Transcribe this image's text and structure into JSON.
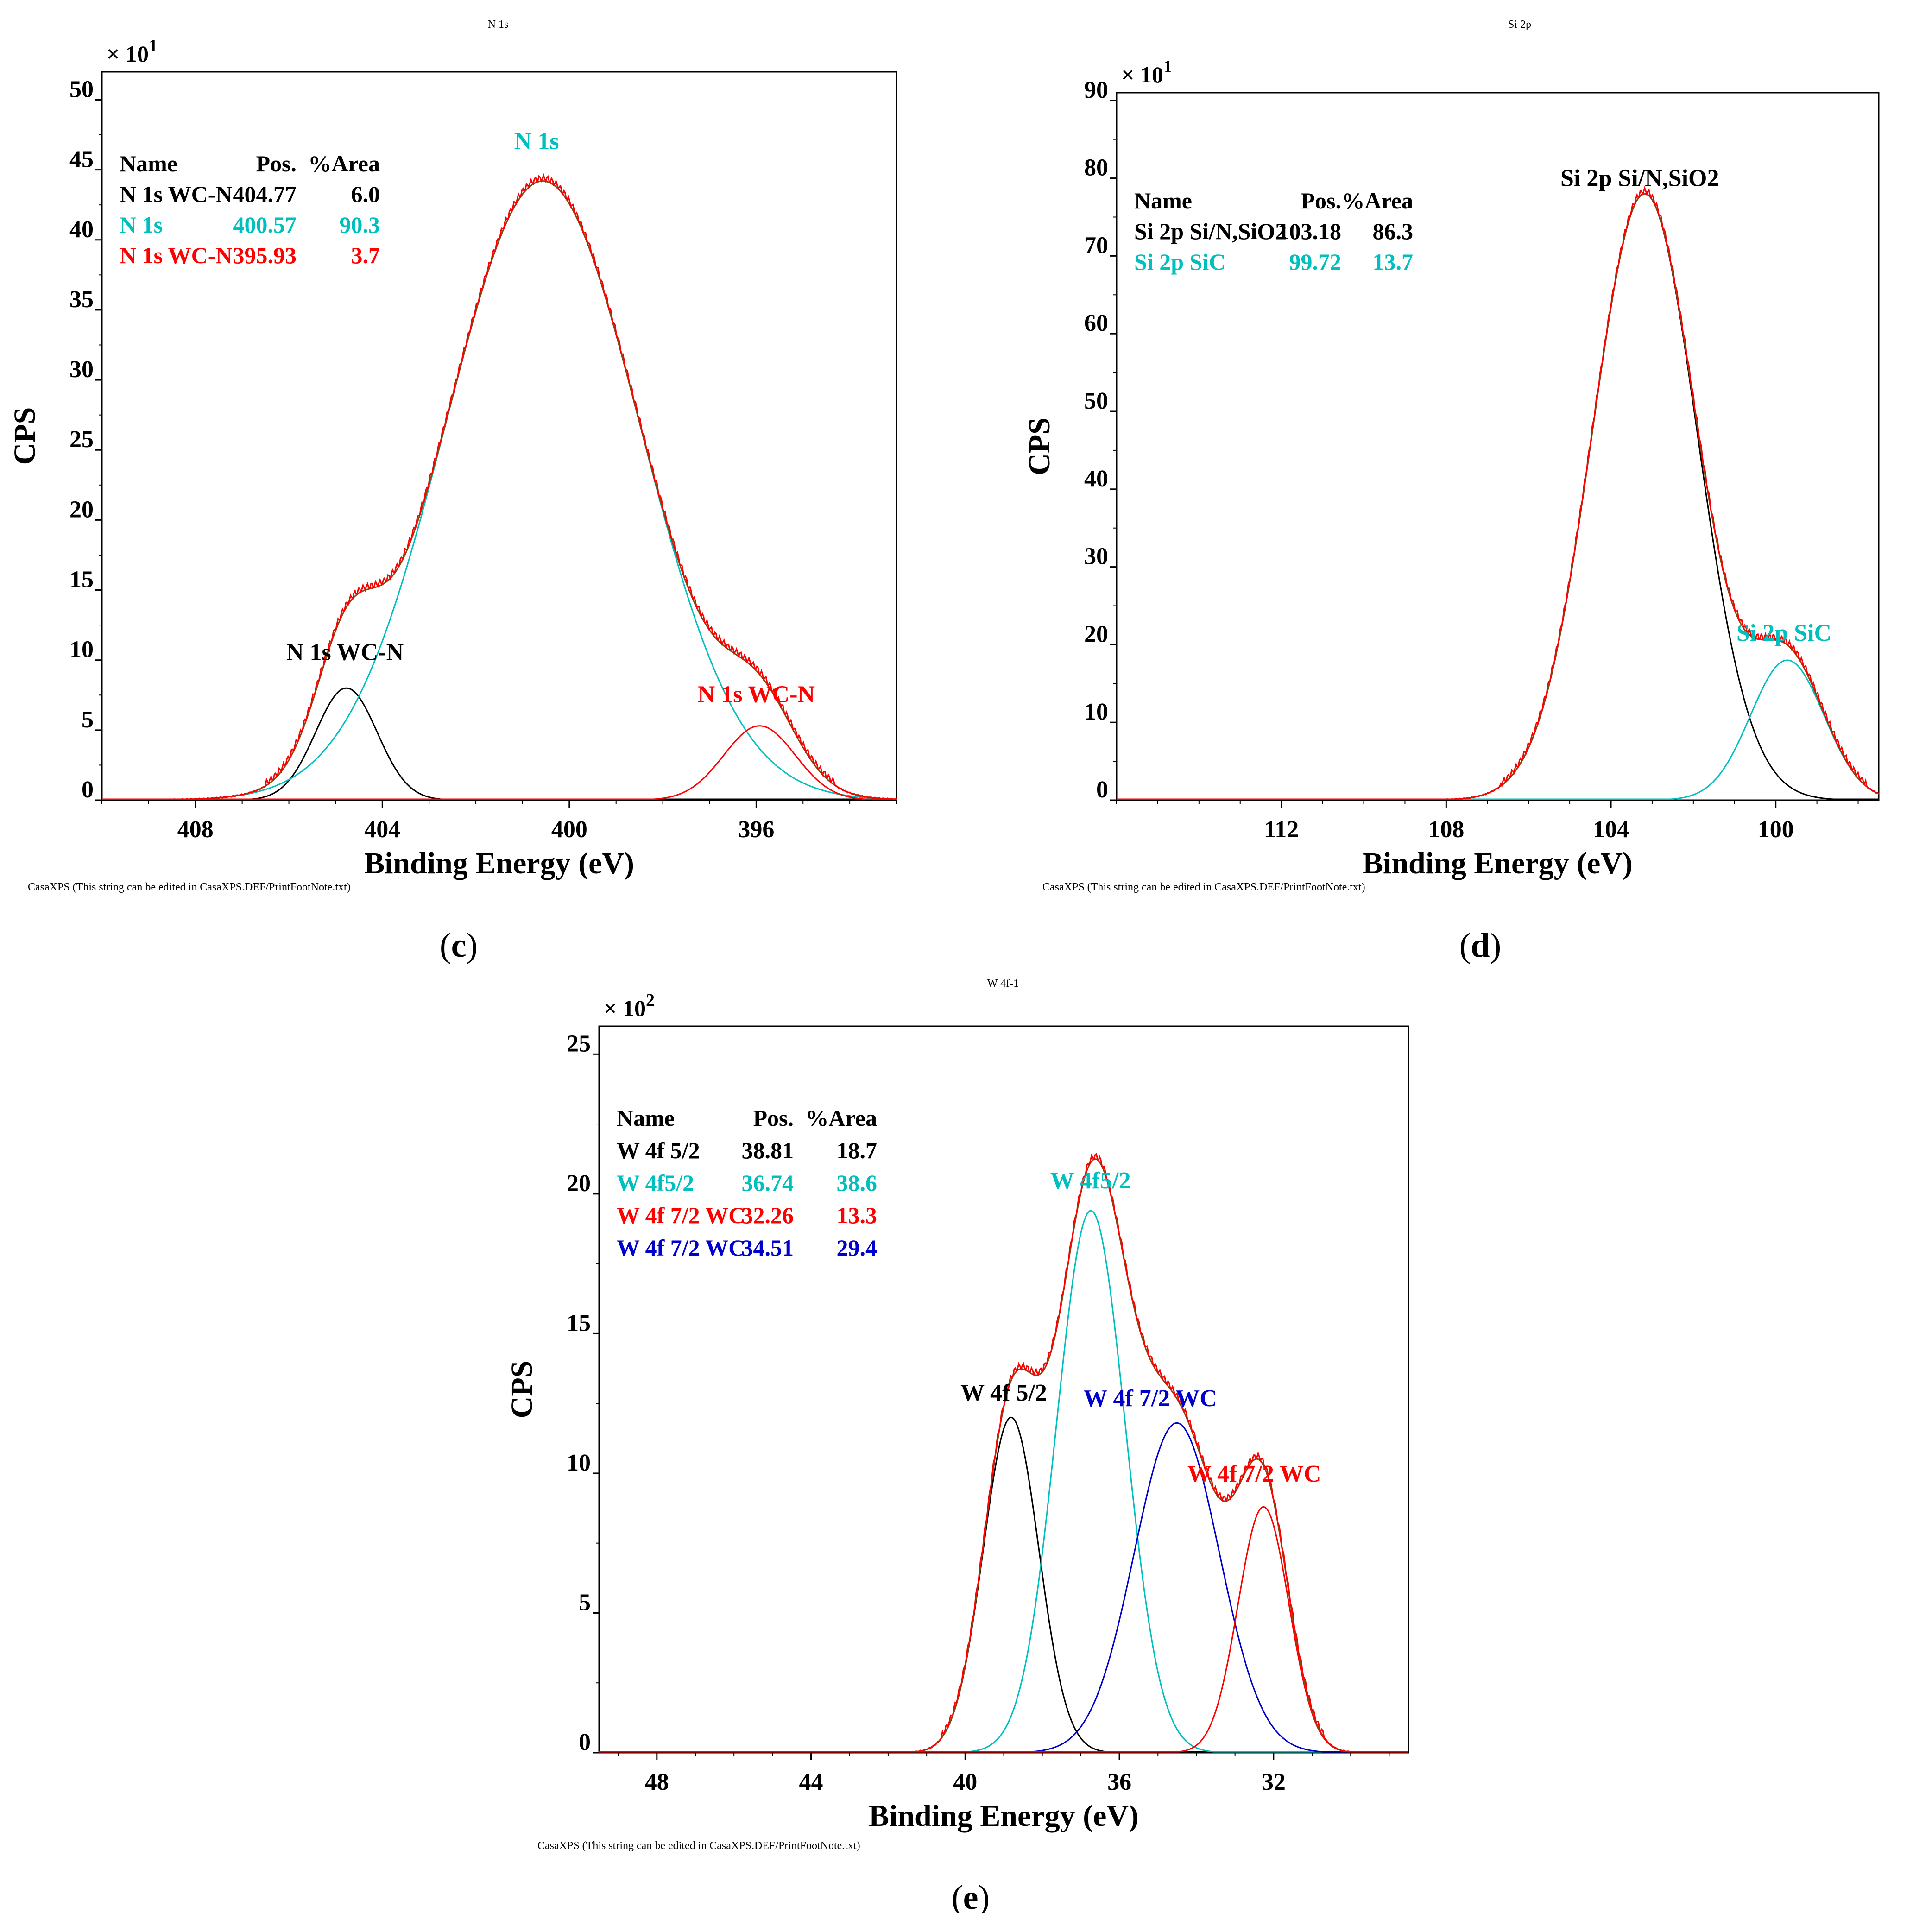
{
  "figure": {
    "footnote": "CasaXPS (This string can be edited in CasaXPS.DEF/PrintFootNote.txt)",
    "colors": {
      "black": "#000000",
      "cyan": "#00bfbf",
      "red": "#ff0000",
      "blue": "#0000cc",
      "envelope": "#8b4513",
      "envelope_red": "#ff0000"
    }
  },
  "chart_data": [
    {
      "type": "line",
      "panel": "c",
      "title": "N 1s",
      "xlabel": "Binding Energy (eV)",
      "ylabel": "CPS",
      "multiplier": {
        "base": "× 10",
        "exp": "1"
      },
      "xlim": [
        410,
        393
      ],
      "ylim": [
        0,
        52
      ],
      "xticks": [
        408,
        404,
        400,
        396
      ],
      "yticks": [
        0,
        5,
        10,
        15,
        20,
        25,
        30,
        35,
        40,
        45,
        50
      ],
      "table": {
        "headers": [
          "Name",
          "Pos.",
          "%Area"
        ],
        "rows": [
          {
            "name": "N 1s  WC-N",
            "pos": "404.77",
            "area": "6.0",
            "color": "black"
          },
          {
            "name": "N 1s",
            "pos": "400.57",
            "area": "90.3",
            "color": "cyan"
          },
          {
            "name": "N 1s  WC-N",
            "pos": "395.93",
            "area": "3.7",
            "color": "red"
          }
        ]
      },
      "components": [
        {
          "label": "N 1s  WC-N",
          "center": 404.77,
          "height": 8.0,
          "fwhm": 1.55,
          "color": "black",
          "label_x": 404.8,
          "label_y": 10.0
        },
        {
          "label": "N 1s",
          "center": 400.57,
          "height": 44.2,
          "fwhm": 4.9,
          "color": "cyan",
          "label_x": 400.7,
          "label_y": 46.5
        },
        {
          "label": "N 1s  WC-N",
          "center": 395.93,
          "height": 5.3,
          "fwhm": 1.8,
          "color": "red",
          "label_x": 396.0,
          "label_y": 7.0
        }
      ]
    },
    {
      "type": "line",
      "panel": "d",
      "title": "Si 2p",
      "xlabel": "Binding Energy (eV)",
      "ylabel": "CPS",
      "multiplier": {
        "base": "× 10",
        "exp": "1"
      },
      "xlim": [
        116,
        97.5
      ],
      "ylim": [
        0,
        91
      ],
      "xticks": [
        112,
        108,
        104,
        100
      ],
      "yticks": [
        0,
        10,
        20,
        30,
        40,
        50,
        60,
        70,
        80,
        90
      ],
      "table": {
        "headers": [
          "Name",
          "Pos.",
          "%Area"
        ],
        "rows": [
          {
            "name": "Si 2p  Si/N,SiO2",
            "pos": "103.18",
            "area": "86.3",
            "color": "black"
          },
          {
            "name": "Si 2p  SiC",
            "pos": "99.72",
            "area": "13.7",
            "color": "cyan"
          }
        ]
      },
      "components": [
        {
          "label": "Si 2p  Si/N,SiO2",
          "center": 103.18,
          "height": 78.0,
          "fwhm": 3.0,
          "color": "black",
          "label_x": 103.3,
          "label_y": 79.0
        },
        {
          "label": "Si 2p  SiC",
          "center": 99.72,
          "height": 18.0,
          "fwhm": 2.1,
          "color": "cyan",
          "label_x": 99.8,
          "label_y": 20.5
        }
      ]
    },
    {
      "type": "line",
      "panel": "e",
      "title": "W 4f-1",
      "xlabel": "Binding Energy (eV)",
      "ylabel": "CPS",
      "multiplier": {
        "base": "× 10",
        "exp": "2"
      },
      "xlim": [
        49.5,
        28.5
      ],
      "ylim": [
        0,
        26
      ],
      "xticks": [
        48,
        44,
        40,
        36,
        32
      ],
      "yticks": [
        0,
        5,
        10,
        15,
        20,
        25
      ],
      "table": {
        "headers": [
          "Name",
          "Pos.",
          "%Area"
        ],
        "rows": [
          {
            "name": "W 4f 5/2",
            "pos": "38.81",
            "area": "18.7",
            "color": "black"
          },
          {
            "name": "W 4f5/2",
            "pos": "36.74",
            "area": "38.6",
            "color": "cyan"
          },
          {
            "name": "W 4f  7/2 WC",
            "pos": "32.26",
            "area": "13.3",
            "color": "red"
          },
          {
            "name": "W 4f  7/2 WC",
            "pos": "34.51",
            "area": "29.4",
            "color": "blue"
          }
        ]
      },
      "components": [
        {
          "label": "W 4f 5/2",
          "center": 38.81,
          "height": 12.0,
          "fwhm": 1.7,
          "color": "black",
          "label_x": 39.0,
          "label_y": 12.6
        },
        {
          "label": "W 4f5/2",
          "center": 36.74,
          "height": 19.4,
          "fwhm": 2.1,
          "color": "cyan",
          "label_x": 36.75,
          "label_y": 20.2
        },
        {
          "label": "W 4f  7/2 WC",
          "center": 34.51,
          "height": 11.8,
          "fwhm": 2.6,
          "color": "blue",
          "label_x": 35.2,
          "label_y": 12.4
        },
        {
          "label": "W 4f  7/2 WC",
          "center": 32.26,
          "height": 8.8,
          "fwhm": 1.55,
          "color": "red",
          "label_x": 32.5,
          "label_y": 9.7
        }
      ]
    }
  ]
}
